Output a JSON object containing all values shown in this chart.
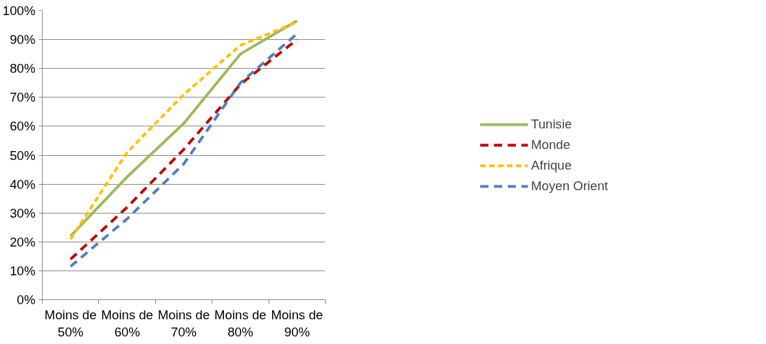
{
  "chart_data": {
    "type": "line",
    "categories": [
      "Moins de 50%",
      "Moins de 60%",
      "Moins de 70%",
      "Moins de 80%",
      "Moins de 90%"
    ],
    "series": [
      {
        "name": "Tunisie",
        "color": "#9bbb59",
        "line_style": "solid",
        "values": [
          22,
          42.5,
          61,
          85,
          96.5
        ]
      },
      {
        "name": "Monde",
        "color": "#c00000",
        "line_style": "dashed",
        "values": [
          14,
          32,
          52,
          74.5,
          90
        ]
      },
      {
        "name": "Afrique",
        "color": "#ffc000",
        "line_style": "dotted",
        "values": [
          21,
          51,
          71,
          88,
          96
        ]
      },
      {
        "name": "Moyen Orient",
        "color": "#4f81bd",
        "line_style": "dashed",
        "values": [
          11.5,
          28,
          47,
          75,
          92
        ]
      }
    ],
    "ylim": [
      0,
      100
    ],
    "yticks": [
      {
        "value": 0,
        "label": "0%"
      },
      {
        "value": 10,
        "label": "10%"
      },
      {
        "value": 20,
        "label": "20%"
      },
      {
        "value": 30,
        "label": "30%"
      },
      {
        "value": 40,
        "label": "40%"
      },
      {
        "value": 50,
        "label": "50%"
      },
      {
        "value": 60,
        "label": "60%"
      },
      {
        "value": 70,
        "label": "70%"
      },
      {
        "value": 80,
        "label": "80%"
      },
      {
        "value": 90,
        "label": "90%"
      },
      {
        "value": 100,
        "label": "100%"
      }
    ],
    "grid": "y",
    "legend": "right",
    "marker": "none"
  }
}
